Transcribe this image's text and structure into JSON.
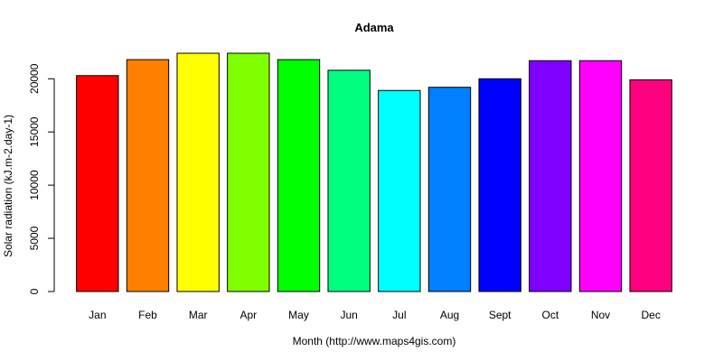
{
  "chart_data": {
    "type": "bar",
    "title": "Adama",
    "xlabel": "Month (http://www.maps4gis.com)",
    "ylabel": "Solar radiation (kJ.m-2.day-1)",
    "categories": [
      "Jan",
      "Feb",
      "Mar",
      "Apr",
      "May",
      "Jun",
      "Jul",
      "Aug",
      "Sept",
      "Oct",
      "Nov",
      "Dec"
    ],
    "values": [
      20300,
      21800,
      22400,
      22400,
      21800,
      20800,
      18900,
      19200,
      20000,
      21700,
      21700,
      19900
    ],
    "colors": [
      "#FF0000",
      "#FF8000",
      "#FFFF00",
      "#80FF00",
      "#00FF00",
      "#00FF80",
      "#00FFFF",
      "#0080FF",
      "#0000FF",
      "#8000FF",
      "#FF00FF",
      "#FF0080"
    ],
    "yticks": [
      0,
      5000,
      10000,
      15000,
      20000
    ],
    "ylim": [
      0,
      23000
    ],
    "grid": false,
    "legend": "none"
  }
}
